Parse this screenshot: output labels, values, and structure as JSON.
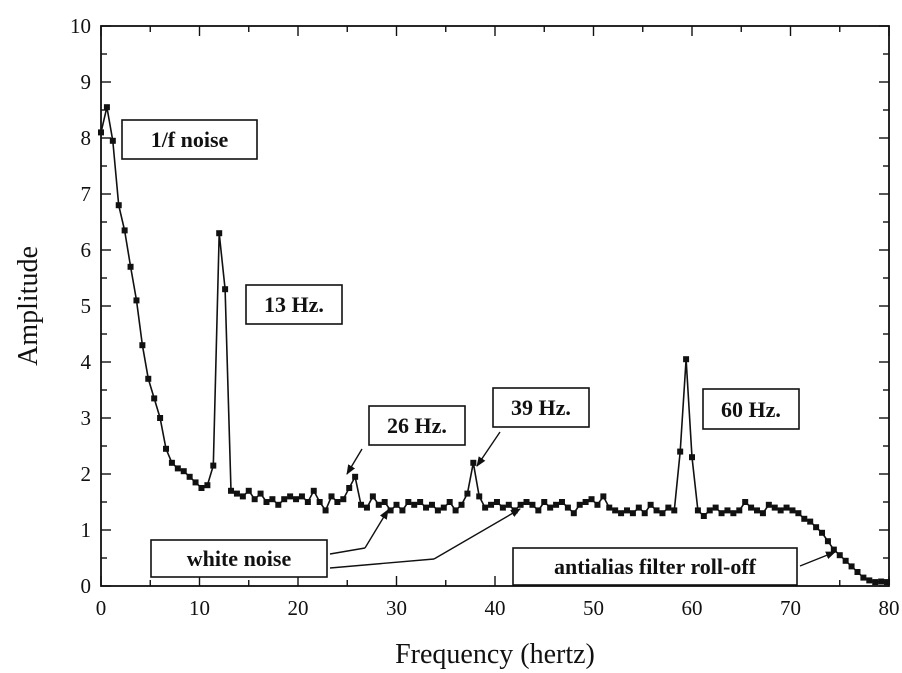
{
  "chart_data": {
    "type": "line",
    "title": "",
    "xlabel": "Frequency (hertz)",
    "ylabel": "Amplitude",
    "xlim": [
      0,
      80
    ],
    "ylim": [
      0,
      10
    ],
    "x_ticks": [
      "0",
      "10",
      "20",
      "30",
      "40",
      "50",
      "60",
      "70",
      "80"
    ],
    "y_ticks": [
      "0",
      "1",
      "2",
      "3",
      "4",
      "5",
      "6",
      "7",
      "8",
      "9",
      "10"
    ],
    "grid": false,
    "marker": "square",
    "colors": {
      "line": "#111111",
      "axis": "#111111"
    },
    "series": [
      {
        "x": [
          0,
          0.6,
          1.2,
          1.8,
          2.4,
          3.0,
          3.6,
          4.2,
          4.8,
          5.4,
          6.0,
          6.6,
          7.2,
          7.8,
          8.4,
          9.0,
          9.6,
          10.2,
          10.8,
          11.4,
          12.0,
          12.6,
          13.2,
          13.8,
          14.4,
          15.0,
          15.6,
          16.2,
          16.8,
          17.4,
          18.0,
          18.6,
          19.2,
          19.8,
          20.4,
          21.0,
          21.6,
          22.2,
          22.8,
          23.4,
          24.0,
          24.6,
          25.2,
          25.8,
          26.4,
          27.0,
          27.6,
          28.2,
          28.8,
          29.4,
          30.0,
          30.6,
          31.2,
          31.8,
          32.4,
          33.0,
          33.6,
          34.2,
          34.8,
          35.4,
          36.0,
          36.6,
          37.2,
          37.8,
          38.4,
          39.0,
          39.6,
          40.2,
          40.8,
          41.4,
          42.0,
          42.6,
          43.2,
          43.8,
          44.4,
          45.0,
          45.6,
          46.2,
          46.8,
          47.4,
          48.0,
          48.6,
          49.2,
          49.8,
          50.4,
          51.0,
          51.6,
          52.2,
          52.8,
          53.4,
          54.0,
          54.6,
          55.2,
          55.8,
          56.4,
          57.0,
          57.6,
          58.2,
          58.8,
          59.4,
          60.0,
          60.6,
          61.2,
          61.8,
          62.4,
          63.0,
          63.6,
          64.2,
          64.8,
          65.4,
          66.0,
          66.6,
          67.2,
          67.8,
          68.4,
          69.0,
          69.6,
          70.2,
          70.8,
          71.4,
          72.0,
          72.6,
          73.2,
          73.8,
          74.4,
          75.0,
          75.6,
          76.2,
          76.8,
          77.4,
          78.0,
          78.6,
          79.2,
          79.8
        ],
        "values": [
          8.1,
          8.55,
          7.95,
          6.8,
          6.35,
          5.7,
          5.1,
          4.3,
          3.7,
          3.35,
          3.0,
          2.45,
          2.2,
          2.1,
          2.05,
          1.95,
          1.85,
          1.75,
          1.8,
          2.15,
          6.3,
          5.3,
          1.7,
          1.65,
          1.6,
          1.7,
          1.55,
          1.65,
          1.5,
          1.55,
          1.45,
          1.55,
          1.6,
          1.55,
          1.6,
          1.5,
          1.7,
          1.5,
          1.35,
          1.6,
          1.5,
          1.55,
          1.75,
          1.95,
          1.45,
          1.4,
          1.6,
          1.45,
          1.5,
          1.35,
          1.45,
          1.35,
          1.5,
          1.45,
          1.5,
          1.4,
          1.45,
          1.35,
          1.4,
          1.5,
          1.35,
          1.45,
          1.65,
          2.2,
          1.6,
          1.4,
          1.45,
          1.5,
          1.4,
          1.45,
          1.35,
          1.45,
          1.5,
          1.45,
          1.35,
          1.5,
          1.4,
          1.45,
          1.5,
          1.4,
          1.3,
          1.45,
          1.5,
          1.55,
          1.45,
          1.6,
          1.4,
          1.35,
          1.3,
          1.35,
          1.3,
          1.4,
          1.3,
          1.45,
          1.35,
          1.3,
          1.4,
          1.35,
          2.4,
          4.05,
          2.3,
          1.35,
          1.25,
          1.35,
          1.4,
          1.3,
          1.35,
          1.3,
          1.35,
          1.5,
          1.4,
          1.35,
          1.3,
          1.45,
          1.4,
          1.35,
          1.4,
          1.35,
          1.3,
          1.2,
          1.15,
          1.05,
          0.95,
          0.8,
          0.65,
          0.55,
          0.45,
          0.35,
          0.25,
          0.15,
          0.1,
          0.07,
          0.08,
          0.07
        ]
      }
    ],
    "annotations": [
      {
        "id": "one-over-f",
        "text": "1/f noise"
      },
      {
        "id": "13hz",
        "text": "13 Hz."
      },
      {
        "id": "26hz",
        "text": "26 Hz."
      },
      {
        "id": "39hz",
        "text": "39 Hz."
      },
      {
        "id": "60hz",
        "text": "60 Hz."
      },
      {
        "id": "white-noise",
        "text": "white noise"
      },
      {
        "id": "antialias",
        "text": "antialias filter roll-off"
      }
    ]
  }
}
